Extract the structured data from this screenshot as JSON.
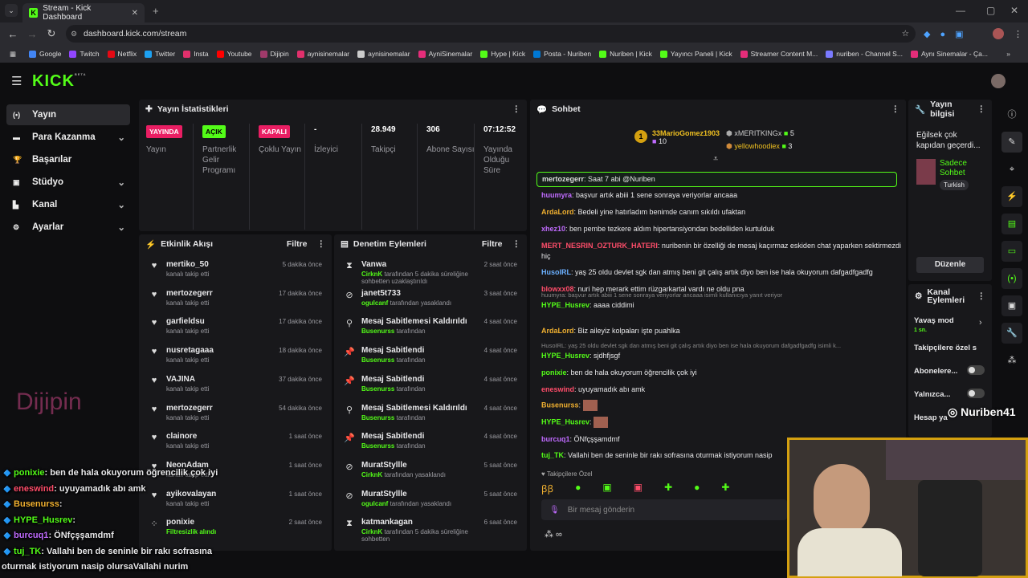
{
  "browser": {
    "tab_title": "Stream - Kick Dashboard",
    "url": "dashboard.kick.com/stream"
  },
  "bookmarks": [
    "Google",
    "Twitch",
    "Netflix",
    "Twitter",
    "Insta",
    "Youtube",
    "Dijipin",
    "aynisinemalar",
    "aynisinemalar",
    "AyniSinemalar",
    "Hype | Kick",
    "Posta - Nuriben",
    "Nuriben | Kick",
    "Yayıncı Paneli | Kick",
    "Streamer Content M...",
    "nuriben - Channel S...",
    "Aynı Sinemalar - Ça..."
  ],
  "logo": "KICK",
  "logo_beta": "BETA",
  "sidebar": [
    {
      "label": "Yayın",
      "icon": "broadcast-icon",
      "chev": false
    },
    {
      "label": "Para Kazanma",
      "icon": "money-icon",
      "chev": true
    },
    {
      "label": "Başarılar",
      "icon": "trophy-icon",
      "chev": false
    },
    {
      "label": "Stüdyo",
      "icon": "studio-icon",
      "chev": true
    },
    {
      "label": "Kanal",
      "icon": "channel-icon",
      "chev": true
    },
    {
      "label": "Ayarlar",
      "icon": "gear-icon",
      "chev": true
    }
  ],
  "stats": {
    "title": "Yayın İstatistikleri",
    "items": [
      {
        "badge": "YAYINDA",
        "badge_color": "#e91e63",
        "label": "Yayın"
      },
      {
        "badge": "AÇIK",
        "badge_color": "#53fc18",
        "label": "Partnerlik Gelir Programı"
      },
      {
        "badge": "KAPALI",
        "badge_color": "#e91e63",
        "label": "Çoklu Yayın"
      },
      {
        "value": "-",
        "label": "İzleyici"
      },
      {
        "value": "28.949",
        "label": "Takipçi"
      },
      {
        "value": "306",
        "label": "Abone Sayısı"
      },
      {
        "value": "07:12:52",
        "label": "Yayında Olduğu Süre"
      }
    ]
  },
  "activity": {
    "title": "Etkinlik Akışı",
    "filter": "Filtre",
    "items": [
      {
        "name": "mertiko_50",
        "sub": "kanalı takip etti",
        "time": "5 dakika önce"
      },
      {
        "name": "mertozegerr",
        "sub": "kanalı takip etti",
        "time": "17 dakika önce"
      },
      {
        "name": "garfieldsu",
        "sub": "kanalı takip etti",
        "time": "17 dakika önce"
      },
      {
        "name": "nusretagaaa",
        "sub": "kanalı takip etti",
        "time": "18 dakika önce"
      },
      {
        "name": "VAJINA",
        "sub": "kanalı takip etti",
        "time": "37 dakika önce"
      },
      {
        "name": "mertozegerr",
        "sub": "kanalı takip etti",
        "time": "54 dakika önce"
      },
      {
        "name": "clainore",
        "sub": "kanalı takip etti",
        "time": "1 saat önce"
      },
      {
        "name": "NeonAdam",
        "sub": "kanalı takip etti",
        "time": "1 saat önce"
      },
      {
        "name": "ayikovalayan",
        "sub": "kanalı takip etti",
        "time": "1 saat önce"
      },
      {
        "name": "ponixie",
        "sub": "Filtresizlik alındı",
        "time": "2 saat önce"
      }
    ]
  },
  "moderation": {
    "title": "Denetim Eylemleri",
    "filter": "Filtre",
    "items": [
      {
        "name": "Vanwa",
        "by": "CirknK",
        "rest": "tarafından 5 dakika süreliğine sohbetten uzaklaştırıldı",
        "time": "2 saat önce",
        "icon": "hourglass-icon"
      },
      {
        "name": "janet5t733",
        "by": "ogulcanf",
        "rest": "tarafından yasaklandı",
        "time": "3 saat önce",
        "icon": "ban-icon"
      },
      {
        "name": "Mesaj Sabitlemesi Kaldırıldı",
        "by": "Busenurss",
        "rest": "tarafından",
        "time": "4 saat önce",
        "icon": "unpin-icon"
      },
      {
        "name": "Mesaj Sabitlendi",
        "by": "Busenurss",
        "rest": "tarafından",
        "time": "4 saat önce",
        "icon": "pin-icon"
      },
      {
        "name": "Mesaj Sabitlendi",
        "by": "Busenurss",
        "rest": "tarafından",
        "time": "4 saat önce",
        "icon": "pin-icon"
      },
      {
        "name": "Mesaj Sabitlemesi Kaldırıldı",
        "by": "Busenurss",
        "rest": "tarafından",
        "time": "4 saat önce",
        "icon": "unpin-icon"
      },
      {
        "name": "Mesaj Sabitlendi",
        "by": "Busenurss",
        "rest": "tarafından",
        "time": "4 saat önce",
        "icon": "pin-icon"
      },
      {
        "name": "MuratStyllle",
        "by": "CirknK",
        "rest": "tarafından yasaklandı",
        "time": "5 saat önce",
        "icon": "ban-icon"
      },
      {
        "name": "MuratStyllle",
        "by": "ogulcanf",
        "rest": "tarafından yasaklandı",
        "time": "5 saat önce",
        "icon": "ban-icon"
      },
      {
        "name": "katmankagan",
        "by": "CirknK",
        "rest": "tarafından 5 dakika süreliğine sohbetten",
        "time": "6 saat önce",
        "icon": "hourglass-icon"
      }
    ]
  },
  "chat": {
    "title": "Sohbet",
    "top": [
      {
        "name": "33MarioGomez1903",
        "count": "10"
      },
      {
        "name": "xMERITKINGx",
        "count": "5"
      },
      {
        "name": "yellowhoodiex",
        "count": "3"
      }
    ],
    "messages": [
      {
        "user": "mertozegerr",
        "color": "#ddd",
        "text": "Saat 7 abi @Nuriben",
        "hl": true
      },
      {
        "user": "huumyra",
        "color": "#c06bff",
        "text": "başvur artık abiii 1 sene sonraya veriyorlar ancaaa"
      },
      {
        "user": "ArdaLord",
        "color": "#f0b030",
        "text": "Bedeli yine hatırladım benimde canım sıkıldı ufaktan"
      },
      {
        "user": "xhez10",
        "color": "#c06bff",
        "text": "ben pembe tezkere aldım hipertansiyondan bedelliden kurtulduk"
      },
      {
        "user": "MERT_NESRIN_OZTURK_HATERI",
        "color": "#ff4d6a",
        "text": "nuribenin bir özelliği de mesaj kaçırmaz eskiden chat yaparken sektirmezdi hiç"
      },
      {
        "user": "HusoIRL",
        "color": "#6bb0ff",
        "text": "yaş 25 oldu devlet sgk dan atmış beni git çalış artık diyo ben ise hala okuyorum dafgadfgadfg"
      },
      {
        "user": "blowxx08",
        "color": "#ff4d6a",
        "text": "nuri hep merark ettim rüzgarkartal vardı ne oldu pna"
      },
      {
        "user": "HYPE_Husrev",
        "color": "#53fc18",
        "text": "aaaa ciddimi",
        "reply": "huumyra: başvur artık abiii 1 sene sonraya veriyorlar ancaaa isimli kullanıcıya yanıt veriyor"
      },
      {
        "user": "ArdaLord",
        "color": "#f0b030",
        "text": "Biz aileyiz kolpaları işte puahlka"
      },
      {
        "user": "HYPE_Husrev",
        "color": "#53fc18",
        "text": "sjdhfjsgf",
        "reply": "HusoIRL: yaş 25 oldu devlet sgk dan atmış beni git çalış artık diyo ben ise hala okuyorum dafgadfgadfg isimli k..."
      },
      {
        "user": "ponixie",
        "color": "#53fc18",
        "text": "ben de hala okuyorum öğrencilik çok iyi"
      },
      {
        "user": "eneswind",
        "color": "#ff4d6a",
        "text": "uyuyamadık abı amk"
      },
      {
        "user": "Busenurss",
        "color": "#f0b030",
        "text": ""
      },
      {
        "user": "HYPE_Husrev",
        "color": "#53fc18",
        "text": ""
      },
      {
        "user": "burcuq1",
        "color": "#c06bff",
        "text": "ÖNfçşşamdmf"
      },
      {
        "user": "tuj_TK",
        "color": "#53fc18",
        "text": "Vallahi ben de seninle bir rakı sofrasına oturmak istiyorum nasip"
      }
    ],
    "followers_only": "Takipçilere Özel",
    "placeholder": "Bir mesaj gönderin"
  },
  "stream_info": {
    "title": "Yayın bilgisi",
    "stream_title": "Eğilsek çok kapıdan geçerdi...",
    "category": "Sadece Sohbet",
    "language": "Turkish",
    "edit": "Düzenle"
  },
  "channel_actions": {
    "title": "Kanal Eylemleri",
    "slow_mode": "Yavaş mod",
    "slow_value": "1 sn.",
    "followers": "Takipçilere özel s",
    "subs": "Abonelere...",
    "only": "Yalnızca...",
    "account": "Hesap ya"
  },
  "overlay": {
    "brand": "Dijipin",
    "handle": "Nuriben41",
    "lines": [
      {
        "user": "ponixie",
        "color": "#53fc18",
        "text": ": ben de hala okuyorum öğrencilik çok iyi"
      },
      {
        "user": "eneswind",
        "color": "#ff4d6a",
        "text": ": uyuyamadık abı amk"
      },
      {
        "user": "Busenurss",
        "color": "#f0b030",
        "text": ":"
      },
      {
        "user": "HYPE_Husrev",
        "color": "#53fc18",
        "text": ":"
      },
      {
        "user": "burcuq1",
        "color": "#c06bff",
        "text": ": ÖNfçşşamdmf"
      },
      {
        "user": "tuj_TK",
        "color": "#53fc18",
        "text": ": Vallahi ben de seninle bir rakı sofrasına"
      },
      {
        "user": "",
        "color": "#fff",
        "text": "oturmak istiyorum nasip olursaVallahi nurim"
      }
    ]
  }
}
